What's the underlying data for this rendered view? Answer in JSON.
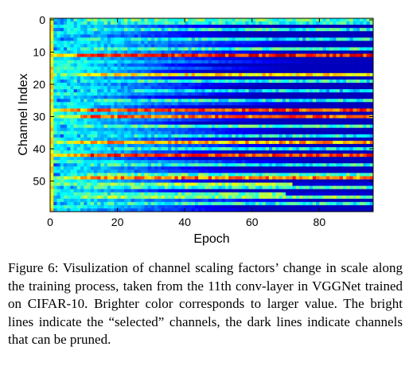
{
  "chart_data": {
    "type": "heatmap",
    "title": "",
    "xlabel": "Epoch",
    "ylabel": "Channel Index",
    "x_range": [
      0,
      96
    ],
    "y_range": [
      0,
      59
    ],
    "y_inverted": true,
    "x_ticks": [
      0,
      20,
      40,
      60,
      80
    ],
    "y_ticks": [
      0,
      10,
      20,
      30,
      40,
      50
    ],
    "n_epochs": 96,
    "n_channels": 60,
    "colormap": [
      "#00008f",
      "#0000ff",
      "#0080ff",
      "#00ffff",
      "#80ff80",
      "#ffff00",
      "#ff8000",
      "#ff0000",
      "#800000"
    ],
    "channels": [
      {
        "index": 0,
        "trend": "selected",
        "intensity": 0.45
      },
      {
        "index": 1,
        "trend": "selected",
        "intensity": 0.4
      },
      {
        "index": 3,
        "trend": "selected",
        "intensity": 0.4
      },
      {
        "index": 6,
        "trend": "selected",
        "intensity": 0.38
      },
      {
        "index": 9,
        "trend": "selected",
        "intensity": 0.42
      },
      {
        "index": 11,
        "trend": "selected",
        "intensity": 0.85
      },
      {
        "index": 17,
        "trend": "selected",
        "intensity": 0.62
      },
      {
        "index": 19,
        "trend": "selected",
        "intensity": 0.4
      },
      {
        "index": 22,
        "trend": "selected",
        "intensity": 0.35
      },
      {
        "index": 25,
        "trend": "selected",
        "intensity": 0.4
      },
      {
        "index": 28,
        "trend": "selected",
        "intensity": 0.8
      },
      {
        "index": 30,
        "trend": "selected",
        "intensity": 0.78
      },
      {
        "index": 33,
        "trend": "selected",
        "intensity": 0.45
      },
      {
        "index": 36,
        "trend": "selected",
        "intensity": 0.38
      },
      {
        "index": 38,
        "trend": "selected",
        "intensity": 0.7
      },
      {
        "index": 40,
        "trend": "selected",
        "intensity": 0.38
      },
      {
        "index": 42,
        "trend": "selected",
        "intensity": 0.82
      },
      {
        "index": 45,
        "trend": "selected",
        "intensity": 0.4
      },
      {
        "index": 48,
        "trend": "selected",
        "intensity": 0.45
      },
      {
        "index": 49,
        "trend": "selected",
        "intensity": 0.75
      },
      {
        "index": 52,
        "trend": "selected",
        "intensity": 0.42
      },
      {
        "index": 55,
        "trend": "selected",
        "intensity": 0.5
      },
      {
        "index": 57,
        "trend": "selected",
        "intensity": 0.4
      },
      {
        "index": 51,
        "trend": "fade",
        "intensity": 0.6,
        "until": 72
      },
      {
        "index": 54,
        "trend": "fade",
        "intensity": 0.5,
        "until": 70
      }
    ]
  },
  "caption": "Figure 6: Visulization of channel scaling factors’ change in scale along the training process, taken from the 11th conv-layer in VGGNet trained on CIFAR-10. Brighter color corresponds to larger value. The bright lines indicate the “selected” channels, the dark lines indicate channels that can be pruned."
}
